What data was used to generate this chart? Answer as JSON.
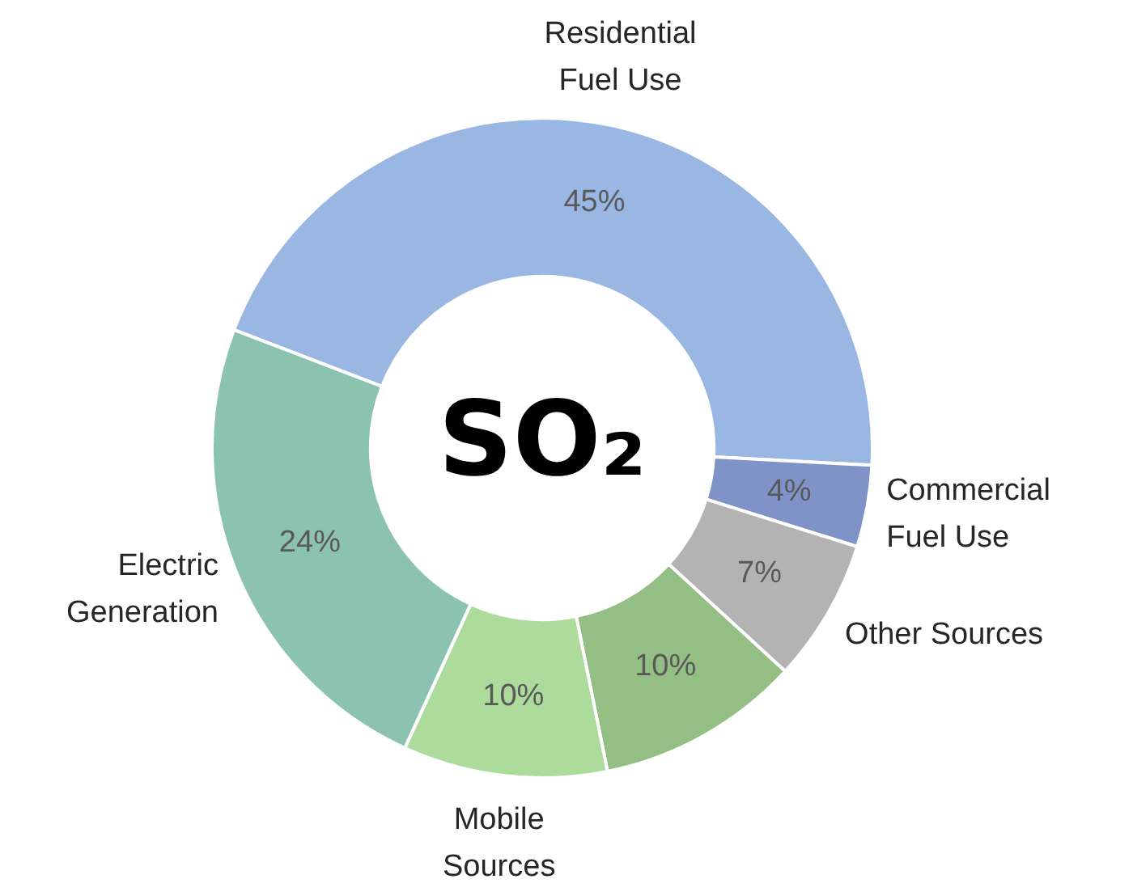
{
  "chart_data": {
    "type": "donut",
    "title": "SO₂",
    "categories": [
      "Residential\nFuel Use",
      "Commercial\nFuel Use",
      "Other Sources",
      null,
      "Mobile\nSources",
      "Electric\nGeneration"
    ],
    "values": [
      45,
      4,
      7,
      10,
      10,
      24
    ],
    "value_labels": [
      "45%",
      "4%",
      "7%",
      "10%",
      "10%",
      "24%"
    ],
    "colors": [
      "#9ab7e4",
      "#7f93c8",
      "#b3b3b3",
      "#94bf84",
      "#acdb9c",
      "#8cc2b0"
    ],
    "legend": false
  }
}
